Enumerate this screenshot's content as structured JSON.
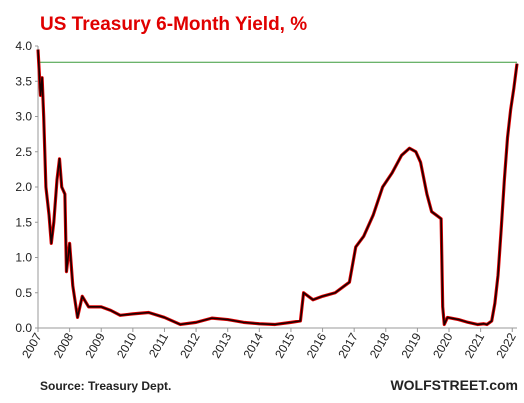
{
  "chart_data": {
    "type": "line",
    "title": "US Treasury 6-Month Yield, %",
    "source": "Source: Treasury Dept.",
    "brand": "WOLFSTREET.com",
    "x": [
      2007.0,
      2007.08,
      2007.13,
      2007.18,
      2007.25,
      2007.35,
      2007.42,
      2007.5,
      2007.6,
      2007.68,
      2007.75,
      2007.85,
      2007.9,
      2008.0,
      2008.1,
      2008.25,
      2008.4,
      2008.6,
      2009.0,
      2009.3,
      2009.6,
      2010.0,
      2010.5,
      2011.0,
      2011.5,
      2012.0,
      2012.5,
      2013.0,
      2013.5,
      2014.0,
      2014.5,
      2015.0,
      2015.3,
      2015.4,
      2015.7,
      2016.0,
      2016.4,
      2016.7,
      2016.85,
      2017.05,
      2017.3,
      2017.6,
      2017.9,
      2018.2,
      2018.5,
      2018.75,
      2018.95,
      2019.1,
      2019.3,
      2019.45,
      2019.6,
      2019.75,
      2019.8,
      2019.85,
      2019.95,
      2020.3,
      2020.6,
      2020.9,
      2021.1,
      2021.2,
      2021.35,
      2021.45,
      2021.55,
      2021.65,
      2021.75,
      2021.85,
      2021.95,
      2022.05,
      2022.15
    ],
    "series": [
      {
        "name": "6-Month Yield",
        "color": "#1a0000",
        "values": [
          3.95,
          3.3,
          3.55,
          3.0,
          2.0,
          1.6,
          1.2,
          1.5,
          2.1,
          2.4,
          2.0,
          1.9,
          0.8,
          1.2,
          0.6,
          0.15,
          0.45,
          0.3,
          0.3,
          0.25,
          0.18,
          0.2,
          0.22,
          0.15,
          0.05,
          0.08,
          0.14,
          0.12,
          0.08,
          0.06,
          0.05,
          0.08,
          0.1,
          0.5,
          0.4,
          0.45,
          0.5,
          0.6,
          0.65,
          1.15,
          1.3,
          1.6,
          2.0,
          2.2,
          2.45,
          2.55,
          2.5,
          2.35,
          1.9,
          1.65,
          1.6,
          1.55,
          0.3,
          0.05,
          0.15,
          0.12,
          0.08,
          0.05,
          0.06,
          0.05,
          0.1,
          0.35,
          0.75,
          1.4,
          2.1,
          2.7,
          3.1,
          3.4,
          3.75
        ]
      }
    ],
    "reference_line": {
      "value": 3.77,
      "color": "#3a9a3a"
    },
    "xlim": [
      2007,
      2022.15
    ],
    "xticks": [
      2007,
      2008,
      2009,
      2010,
      2011,
      2012,
      2013,
      2014,
      2015,
      2016,
      2017,
      2018,
      2019,
      2020,
      2021,
      2022
    ],
    "ylim": [
      0,
      4
    ],
    "yticks": [
      {
        "value": 0,
        "label": "0.0"
      },
      0.5,
      {
        "value": 1,
        "label": "1.0"
      },
      1.5,
      {
        "value": 2,
        "label": "2.0"
      },
      2.5,
      {
        "value": 3,
        "label": "3.0"
      },
      3.5,
      {
        "value": 4,
        "label": "4.0"
      }
    ],
    "grid": false
  }
}
